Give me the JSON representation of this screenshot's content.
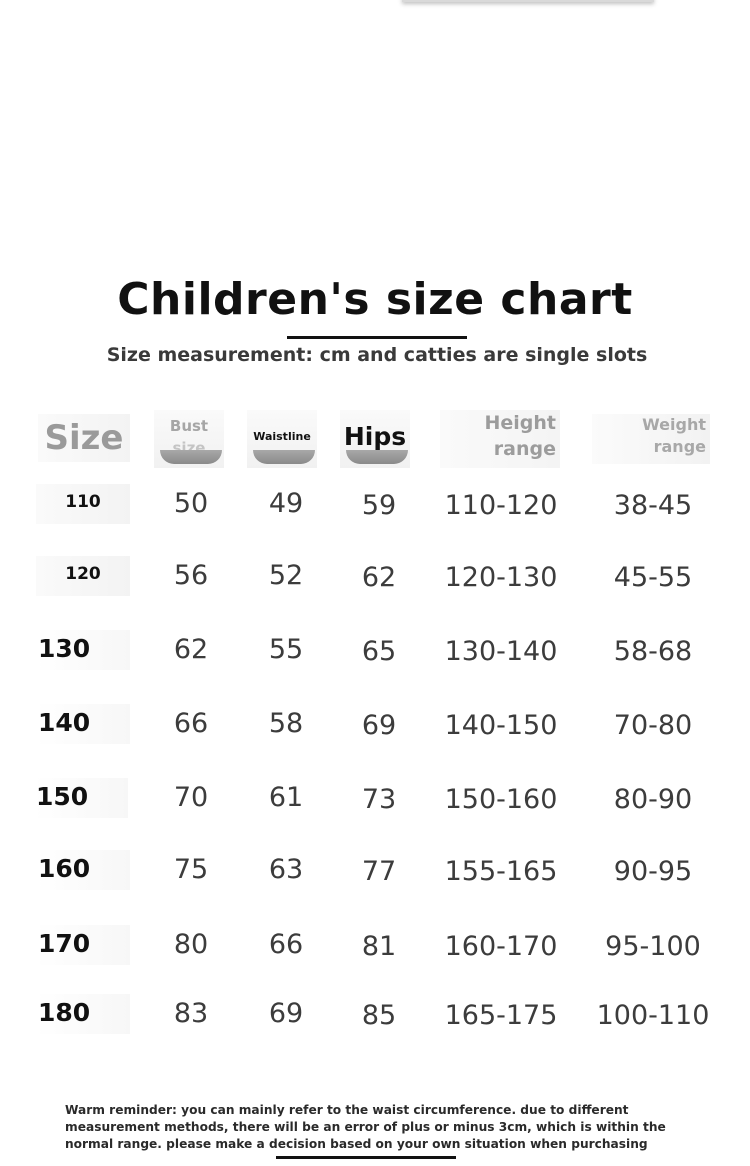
{
  "title": "Children's size chart",
  "subtitle": "Size measurement: cm and catties are single slots",
  "headers": {
    "size": "Size",
    "bust_line1": "Bust",
    "bust_line2": "size",
    "waist": "Waistline",
    "hips": "Hips",
    "height_line1": "Height",
    "height_line2": "range",
    "weight_line1": "Weight",
    "weight_line2": "range"
  },
  "rows": [
    {
      "size": "110",
      "bust": "50",
      "waist": "49",
      "hips": "59",
      "height": "110-120",
      "weight": "38-45"
    },
    {
      "size": "120",
      "bust": "56",
      "waist": "52",
      "hips": "62",
      "height": "120-130",
      "weight": "45-55"
    },
    {
      "size": "130",
      "bust": "62",
      "waist": "55",
      "hips": "65",
      "height": "130-140",
      "weight": "58-68"
    },
    {
      "size": "140",
      "bust": "66",
      "waist": "58",
      "hips": "69",
      "height": "140-150",
      "weight": "70-80"
    },
    {
      "size": "150",
      "bust": "70",
      "waist": "61",
      "hips": "73",
      "height": "150-160",
      "weight": "80-90"
    },
    {
      "size": "160",
      "bust": "75",
      "waist": "63",
      "hips": "77",
      "height": "155-165",
      "weight": "90-95"
    },
    {
      "size": "170",
      "bust": "80",
      "waist": "66",
      "hips": "81",
      "height": "160-170",
      "weight": "95-100"
    },
    {
      "size": "180",
      "bust": "83",
      "waist": "69",
      "hips": "85",
      "height": "165-175",
      "weight": "100-110"
    }
  ],
  "reminder": "Warm reminder: you can mainly refer to the waist circumference. due to different measurement methods, there will be an error of plus or minus 3cm, which is within the normal range. please make a decision based on your own situation when purchasing"
}
